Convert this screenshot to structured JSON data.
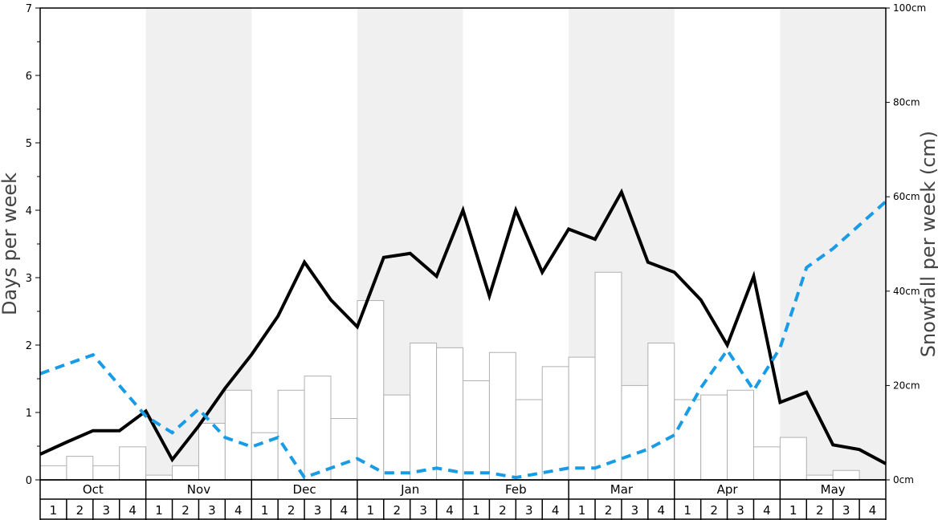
{
  "chart_data": {
    "type": "bar",
    "months": [
      "Oct",
      "Nov",
      "Dec",
      "Jan",
      "Feb",
      "Mar",
      "Apr",
      "May"
    ],
    "week_labels": [
      "1",
      "2",
      "3",
      "4"
    ],
    "y_left": {
      "label": "Days per week",
      "ylim": [
        0,
        7
      ],
      "ticks": [
        "0",
        "1",
        "2",
        "3",
        "4",
        "5",
        "6",
        "7"
      ]
    },
    "y_right": {
      "label": "Snowfall per week (cm)",
      "ylim": [
        0,
        100
      ],
      "ticks": [
        "0cm",
        "20cm",
        "40cm",
        "60cm",
        "80cm",
        "100cm"
      ]
    },
    "series": [
      {
        "axis": "right",
        "kind": "bar",
        "values": [
          3,
          5,
          3,
          7,
          1,
          3,
          12,
          19,
          10,
          19,
          22,
          13,
          38,
          18,
          29,
          28,
          21,
          27,
          17,
          24,
          26,
          44,
          20,
          29,
          17,
          18,
          19,
          7,
          9,
          1,
          2,
          0
        ]
      },
      {
        "axis": "left",
        "kind": "line",
        "style": "solid",
        "color": "#000000",
        "values": [
          0.38,
          0.56,
          0.73,
          0.73,
          1.02,
          0.3,
          0.8,
          1.36,
          1.86,
          2.43,
          3.23,
          2.67,
          2.27,
          3.3,
          3.36,
          3.02,
          4.0,
          2.73,
          4.0,
          3.08,
          3.72,
          3.57,
          4.27,
          3.23,
          3.08,
          2.67,
          2.0,
          3.02,
          1.15,
          1.3,
          0.52,
          0.45,
          0.24
        ]
      },
      {
        "axis": "right",
        "kind": "line",
        "style": "dashed",
        "color": "#1a9be6",
        "values": [
          22.5,
          24.5,
          26.5,
          20,
          13.5,
          10,
          15,
          9,
          7,
          9,
          0.5,
          2.5,
          4.5,
          1.5,
          1.5,
          2.5,
          1.5,
          1.5,
          0.5,
          1.5,
          2.5,
          2.5,
          4.5,
          6.5,
          9.5,
          19.5,
          27.5,
          19,
          28,
          45,
          49,
          54,
          59
        ]
      }
    ],
    "shading": "alternating month bands",
    "grid": false
  }
}
